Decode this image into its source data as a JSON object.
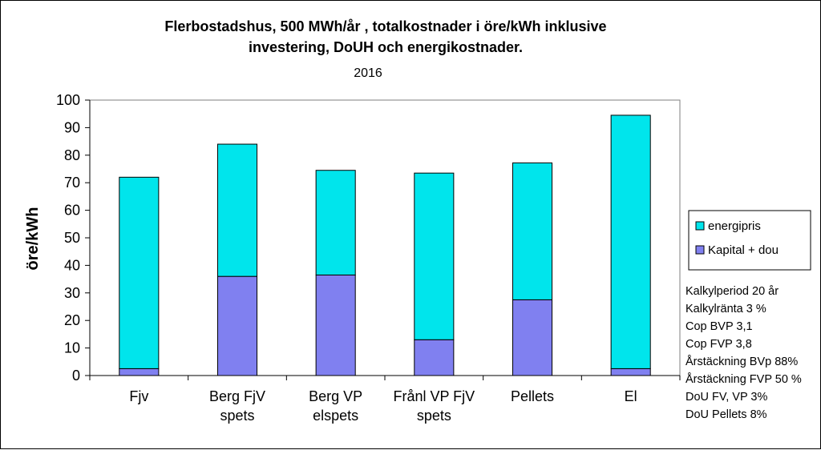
{
  "chart_data": {
    "type": "bar",
    "stacked": true,
    "title_lines": [
      "Flerbostadshus,  500 MWh/år , totalkostnader  i öre/kWh inklusive",
      "investering, DoUH och energikostnader."
    ],
    "subtitle": "2016",
    "ylabel": "öre/kWh",
    "ylim": [
      0,
      100
    ],
    "yticks": [
      0,
      10,
      20,
      30,
      40,
      50,
      60,
      70,
      80,
      90,
      100
    ],
    "grid": false,
    "legend_position": "right",
    "categories": [
      [
        "Fjv"
      ],
      [
        "Berg FjV",
        "spets"
      ],
      [
        "Berg VP",
        "elspets"
      ],
      [
        "Frånl VP FjV",
        "spets"
      ],
      [
        "Pellets"
      ],
      [
        "El"
      ]
    ],
    "series": [
      {
        "name": "Kapital + dou",
        "color": "#8080f0",
        "values": [
          2.5,
          36,
          36.5,
          13,
          27.5,
          2.5
        ]
      },
      {
        "name": "energipris",
        "color": "#00e5ec",
        "values": [
          69.5,
          48,
          38,
          60.5,
          49.7,
          92
        ]
      }
    ],
    "legend_order": [
      "energipris",
      "Kapital + dou"
    ],
    "notes": [
      "Kalkylperiod 20 år",
      "Kalkylränta 3 %",
      "Cop BVP 3,1",
      "Cop FVP 3,8",
      "Årstäckning BVp 88%",
      "Årstäckning FVP 50 %",
      "DoU FV, VP 3%",
      "DoU Pellets 8%"
    ]
  }
}
